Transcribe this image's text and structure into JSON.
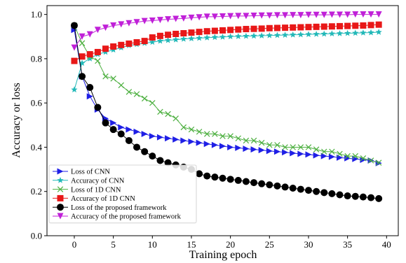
{
  "chart_data": {
    "type": "line",
    "xlabel": "Training epoch",
    "ylabel": "Accuracy or loss",
    "xlim": [
      -3.5,
      41.5
    ],
    "ylim": [
      0.0,
      1.04
    ],
    "xticks": [
      0,
      5,
      10,
      15,
      20,
      25,
      30,
      35,
      40
    ],
    "yticks": [
      0.0,
      0.2,
      0.4,
      0.6,
      0.8,
      1.0
    ],
    "xtick_labels": [
      "0",
      "5",
      "10",
      "15",
      "20",
      "25",
      "30",
      "35",
      "40"
    ],
    "ytick_labels": [
      "0.0",
      "0.2",
      "0.4",
      "0.6",
      "0.8",
      "1.0"
    ],
    "grid": false,
    "legend_position": "lower-left",
    "x": [
      0,
      1,
      2,
      3,
      4,
      5,
      6,
      7,
      8,
      9,
      10,
      11,
      12,
      13,
      14,
      15,
      16,
      17,
      18,
      19,
      20,
      21,
      22,
      23,
      24,
      25,
      26,
      27,
      28,
      29,
      30,
      31,
      32,
      33,
      34,
      35,
      36,
      37,
      38,
      39
    ],
    "series": [
      {
        "name": "Loss of CNN",
        "color": "#1f1fe6",
        "marker": "triangle-right",
        "values": [
          0.93,
          0.72,
          0.63,
          0.57,
          0.53,
          0.51,
          0.49,
          0.48,
          0.47,
          0.46,
          0.45,
          0.445,
          0.44,
          0.435,
          0.43,
          0.425,
          0.42,
          0.415,
          0.41,
          0.405,
          0.4,
          0.397,
          0.393,
          0.39,
          0.387,
          0.383,
          0.38,
          0.377,
          0.373,
          0.37,
          0.367,
          0.363,
          0.36,
          0.357,
          0.353,
          0.35,
          0.347,
          0.343,
          0.34,
          0.328
        ]
      },
      {
        "name": "Accuracy of CNN",
        "color": "#22b8b8",
        "marker": "star",
        "values": [
          0.66,
          0.78,
          0.8,
          0.82,
          0.83,
          0.84,
          0.85,
          0.86,
          0.865,
          0.87,
          0.875,
          0.88,
          0.883,
          0.886,
          0.889,
          0.891,
          0.893,
          0.895,
          0.897,
          0.898,
          0.9,
          0.901,
          0.902,
          0.903,
          0.904,
          0.905,
          0.906,
          0.907,
          0.908,
          0.909,
          0.91,
          0.911,
          0.912,
          0.913,
          0.914,
          0.915,
          0.916,
          0.917,
          0.918,
          0.92
        ]
      },
      {
        "name": "Loss of 1D CNN",
        "color": "#4caf3f",
        "marker": "x",
        "values": [
          0.95,
          0.87,
          0.81,
          0.79,
          0.72,
          0.71,
          0.68,
          0.65,
          0.64,
          0.62,
          0.6,
          0.56,
          0.55,
          0.53,
          0.49,
          0.48,
          0.47,
          0.46,
          0.46,
          0.45,
          0.45,
          0.44,
          0.43,
          0.43,
          0.42,
          0.41,
          0.41,
          0.4,
          0.4,
          0.4,
          0.4,
          0.39,
          0.38,
          0.38,
          0.37,
          0.36,
          0.36,
          0.35,
          0.34,
          0.33
        ]
      },
      {
        "name": "Accuracy of 1D CNN",
        "color": "#e81818",
        "marker": "square",
        "values": [
          0.79,
          0.81,
          0.82,
          0.83,
          0.845,
          0.855,
          0.862,
          0.868,
          0.874,
          0.88,
          0.896,
          0.903,
          0.908,
          0.912,
          0.915,
          0.918,
          0.921,
          0.924,
          0.926,
          0.928,
          0.93,
          0.932,
          0.934,
          0.935,
          0.936,
          0.938,
          0.939,
          0.94,
          0.941,
          0.942,
          0.943,
          0.944,
          0.945,
          0.946,
          0.947,
          0.948,
          0.949,
          0.95,
          0.952,
          0.954
        ]
      },
      {
        "name": "Loss of the proposed framework",
        "color": "#000000",
        "marker": "circle",
        "values": [
          0.95,
          0.72,
          0.67,
          0.58,
          0.51,
          0.48,
          0.46,
          0.43,
          0.4,
          0.38,
          0.36,
          0.34,
          0.33,
          0.32,
          0.31,
          0.3,
          0.28,
          0.27,
          0.265,
          0.26,
          0.255,
          0.25,
          0.245,
          0.24,
          0.235,
          0.23,
          0.225,
          0.22,
          0.215,
          0.21,
          0.205,
          0.2,
          0.195,
          0.19,
          0.185,
          0.18,
          0.178,
          0.175,
          0.172,
          0.168
        ]
      },
      {
        "name": "Accuracy of the proposed framework",
        "color": "#c020d8",
        "marker": "triangle-down",
        "values": [
          0.85,
          0.9,
          0.91,
          0.93,
          0.94,
          0.95,
          0.955,
          0.96,
          0.965,
          0.97,
          0.972,
          0.975,
          0.978,
          0.98,
          0.982,
          0.985,
          0.987,
          0.99,
          0.99,
          0.991,
          0.992,
          0.993,
          0.993,
          0.994,
          0.995,
          0.995,
          0.996,
          0.996,
          0.997,
          0.997,
          0.998,
          0.998,
          0.998,
          0.999,
          0.999,
          0.999,
          1.0,
          1.0,
          1.0,
          1.0
        ]
      }
    ]
  }
}
